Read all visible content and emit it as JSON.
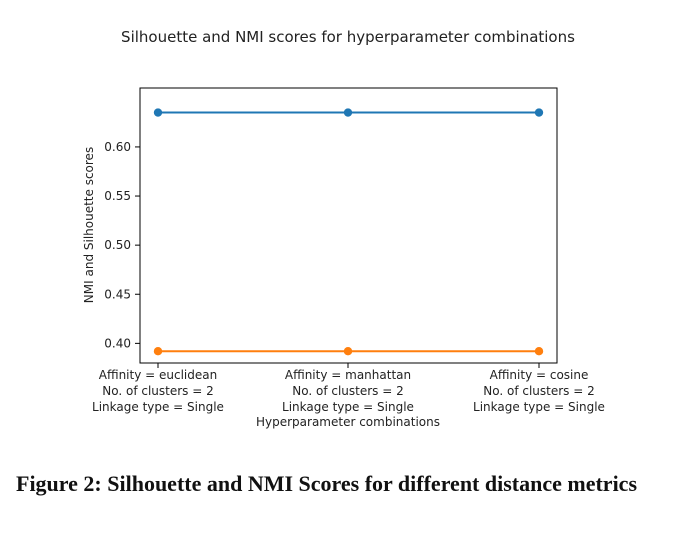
{
  "caption": "Figure 2: Silhouette and NMI Scores for different distance metrics",
  "chart_data": {
    "type": "line",
    "title": "Silhouette  and NMI scores for hyperparameter combinations",
    "xlabel": "Hyperparameter combinations",
    "ylabel": "NMI and Silhouette scores",
    "categories": [
      [
        "Affinity = euclidean",
        "No. of clusters = 2",
        "Linkage type = Single"
      ],
      [
        "Affinity = manhattan",
        "No. of clusters = 2",
        "Linkage type = Single"
      ],
      [
        "Affinity = cosine",
        "No. of clusters = 2",
        "Linkage type = Single"
      ]
    ],
    "series": [
      {
        "values": [
          0.635,
          0.635,
          0.635
        ],
        "color": "#1f77b4"
      },
      {
        "values": [
          0.392,
          0.392,
          0.392
        ],
        "color": "#ff7f0e"
      }
    ],
    "ylim": [
      0.38,
      0.66
    ],
    "yticks": [
      "0.40",
      "0.45",
      "0.50",
      "0.55",
      "0.60"
    ],
    "grid": false,
    "legend": "none"
  }
}
